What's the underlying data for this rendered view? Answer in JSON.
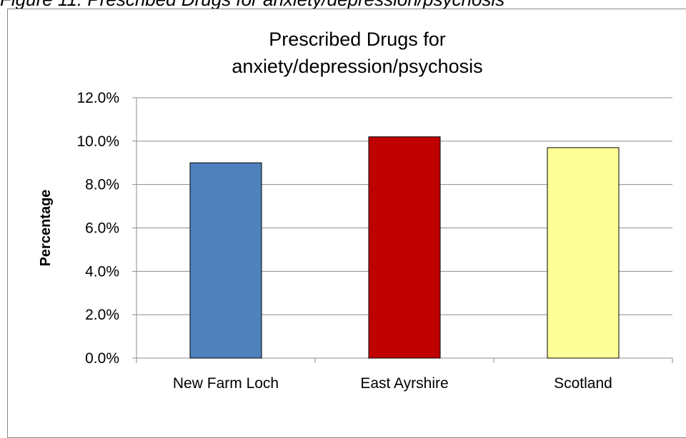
{
  "caption": "Figure 11: Prescribed Drugs for anxiety/depression/psychosis",
  "chart_data": {
    "type": "bar",
    "title_lines": [
      "Prescribed Drugs for",
      "anxiety/depression/psychosis"
    ],
    "xlabel": "",
    "ylabel": "Percentage",
    "categories": [
      "New Farm Loch",
      "East Ayrshire",
      "Scotland"
    ],
    "values": [
      9.0,
      10.2,
      9.7
    ],
    "colors": [
      "#4f81bd",
      "#c00000",
      "#ffff99"
    ],
    "ylim": [
      0,
      12
    ],
    "yticks": [
      0,
      2,
      4,
      6,
      8,
      10,
      12
    ],
    "ytick_labels": [
      "0.0%",
      "2.0%",
      "4.0%",
      "6.0%",
      "8.0%",
      "10.0%",
      "12.0%"
    ],
    "grid": true,
    "legend": "none"
  }
}
